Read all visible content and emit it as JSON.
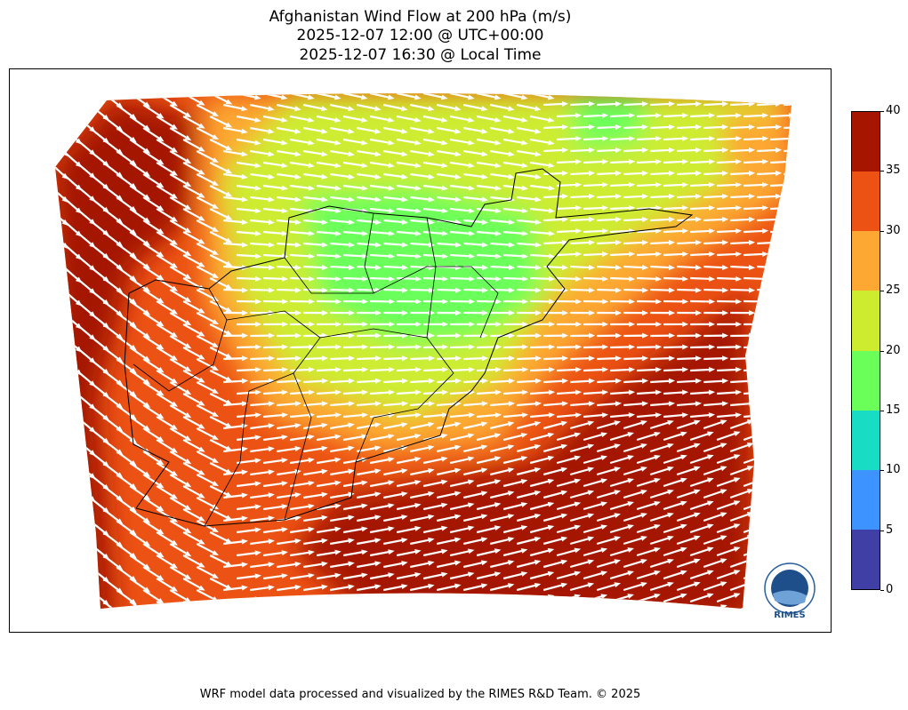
{
  "title": {
    "line1": "Afghanistan Wind Flow at 200 hPa (m/s)",
    "line2": "2025-12-07 12:00 @ UTC+00:00",
    "line3": "2025-12-07 16:30 @ Local Time"
  },
  "colorbar": {
    "ticks": [
      "0",
      "5",
      "10",
      "15",
      "20",
      "25",
      "30",
      "35",
      "40"
    ],
    "colors": [
      "#3f3fa6",
      "#3d93ff",
      "#18dcc4",
      "#6bff5a",
      "#cdec30",
      "#fda832",
      "#ec5213",
      "#a51500"
    ]
  },
  "logo": {
    "text": "RIMES"
  },
  "footer": "WRF model data processed and visualized by the RIMES R&D Team. © 2025"
}
